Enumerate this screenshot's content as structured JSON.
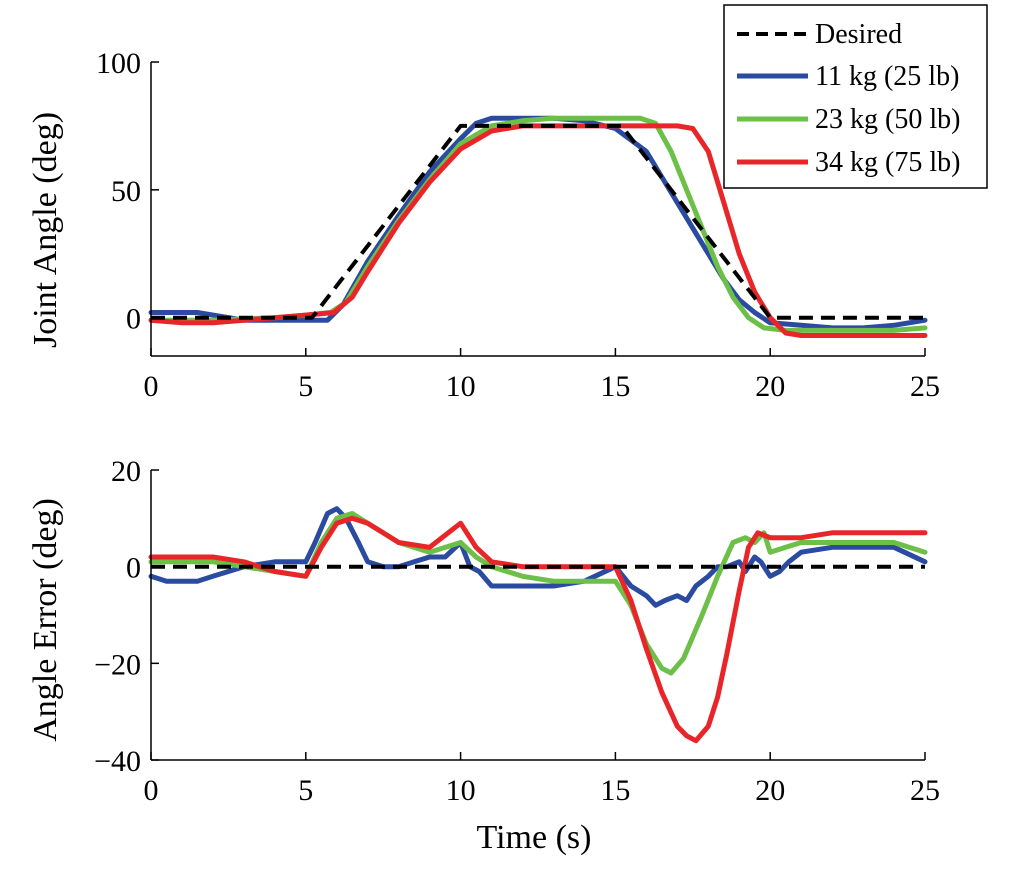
{
  "chart_data": [
    {
      "type": "line",
      "id": "top",
      "ylabel": "Joint Angle (deg)",
      "xlabel": "",
      "xlim": [
        0,
        25
      ],
      "ylim": [
        -15,
        100
      ],
      "xticks": [
        0,
        5,
        10,
        15,
        20,
        25
      ],
      "yticks": [
        0,
        50,
        100
      ],
      "legend": {
        "position": "top-right",
        "entries": [
          "Desired",
          "11 kg (25 lb)",
          "23 kg (50 lb)",
          "34 kg (75 lb)"
        ]
      },
      "series": [
        {
          "name": "Desired",
          "color": "#000000",
          "dashed": true,
          "x": [
            0,
            5.2,
            10,
            15.2,
            20,
            25
          ],
          "y": [
            0,
            0,
            75,
            75,
            0,
            0
          ]
        },
        {
          "name": "11 kg (25 lb)",
          "color": "#2b4ba1",
          "dashed": false,
          "x": [
            0,
            1.5,
            3,
            4,
            5,
            5.7,
            6.2,
            7,
            8,
            9,
            10,
            10.5,
            11,
            12,
            13,
            14,
            15,
            16,
            16.5,
            17,
            17.5,
            18,
            18.5,
            19,
            19.5,
            20,
            21,
            22,
            23,
            24,
            25
          ],
          "y": [
            2,
            2,
            -1,
            -1,
            -1,
            -1,
            5,
            22,
            40,
            57,
            70,
            76,
            78,
            78,
            78,
            77,
            74,
            65,
            55,
            45,
            35,
            25,
            15,
            7,
            2,
            -2,
            -3,
            -4,
            -4,
            -3,
            -1
          ]
        },
        {
          "name": "23 kg (50 lb)",
          "color": "#6cbf47",
          "dashed": false,
          "x": [
            0,
            2,
            4,
            5,
            5.8,
            6.3,
            7,
            8,
            9,
            10,
            11,
            12,
            13,
            14,
            15,
            15.8,
            16.3,
            16.8,
            17.3,
            17.8,
            18.3,
            18.8,
            19.3,
            19.8,
            20.5,
            22,
            23,
            24,
            25
          ],
          "y": [
            -1,
            -1,
            0,
            1,
            2,
            6,
            20,
            38,
            54,
            68,
            75,
            77,
            78,
            78,
            78,
            78,
            76,
            65,
            50,
            35,
            20,
            8,
            0,
            -4,
            -5,
            -5,
            -5,
            -5,
            -4
          ]
        },
        {
          "name": "34 kg (75 lb)",
          "color": "#e8262a",
          "dashed": false,
          "x": [
            0,
            1,
            2,
            3,
            4,
            5,
            5.9,
            6.5,
            7,
            8,
            9,
            10,
            11,
            12,
            13,
            14,
            15,
            16,
            17,
            17.5,
            18,
            18.5,
            19,
            19.5,
            20,
            20.5,
            21,
            22,
            23,
            24,
            25
          ],
          "y": [
            -1,
            -2,
            -2,
            -1,
            0,
            1,
            2,
            8,
            18,
            37,
            53,
            66,
            73,
            75,
            75,
            75,
            75,
            75,
            75,
            74,
            65,
            45,
            25,
            10,
            0,
            -6,
            -7,
            -7,
            -7,
            -7,
            -7
          ]
        }
      ]
    },
    {
      "type": "line",
      "id": "bottom",
      "ylabel": "Angle Error (deg)",
      "xlabel": "Time (s)",
      "xlim": [
        0,
        25
      ],
      "ylim": [
        -40,
        20
      ],
      "xticks": [
        0,
        5,
        10,
        15,
        20,
        25
      ],
      "yticks": [
        -40,
        -20,
        0,
        20
      ],
      "ytick_labels": [
        "−40",
        "−20",
        "0",
        "20"
      ],
      "series": [
        {
          "name": "Desired",
          "color": "#000000",
          "dashed": true,
          "x": [
            0,
            25
          ],
          "y": [
            0,
            0
          ]
        },
        {
          "name": "11 kg (25 lb)",
          "color": "#2b4ba1",
          "dashed": false,
          "x": [
            0,
            0.5,
            1,
            1.5,
            2,
            3,
            4,
            5,
            5.3,
            5.7,
            6,
            6.3,
            6.7,
            7,
            7.5,
            8,
            8.5,
            9,
            9.5,
            10,
            10.3,
            10.6,
            11,
            12,
            13,
            14,
            15,
            15.5,
            16,
            16.3,
            16.6,
            17,
            17.3,
            17.6,
            18,
            18.3,
            18.6,
            19,
            19.2,
            19.5,
            19.7,
            20,
            20.3,
            20.6,
            21,
            22,
            23,
            24,
            25
          ],
          "y": [
            -2,
            -3,
            -3,
            -3,
            -2,
            0,
            1,
            1,
            5,
            11,
            12,
            10,
            5,
            1,
            0,
            0,
            1,
            2,
            2,
            5,
            0,
            -1,
            -4,
            -4,
            -4,
            -3,
            0,
            -4,
            -6,
            -8,
            -7,
            -6,
            -7,
            -4,
            -2,
            0,
            0,
            1,
            -1,
            2,
            1,
            -2,
            -1,
            1,
            3,
            4,
            4,
            4,
            1
          ]
        },
        {
          "name": "23 kg (50 lb)",
          "color": "#6cbf47",
          "dashed": false,
          "x": [
            0,
            1,
            2,
            3,
            4,
            5,
            5.5,
            6,
            6.5,
            7,
            8,
            9,
            10,
            10.5,
            11,
            12,
            13,
            14,
            15,
            15.5,
            16,
            16.5,
            16.8,
            17.2,
            17.8,
            18.3,
            18.8,
            19.2,
            19.5,
            19.8,
            20,
            20.5,
            21,
            22,
            23,
            24,
            25
          ],
          "y": [
            1,
            1,
            1,
            0,
            -1,
            -2,
            5,
            10,
            11,
            9,
            5,
            3,
            5,
            2,
            0,
            -2,
            -3,
            -3,
            -3,
            -8,
            -16,
            -21,
            -22,
            -19,
            -10,
            -2,
            5,
            6,
            5,
            7,
            3,
            4,
            5,
            5,
            5,
            5,
            3
          ]
        },
        {
          "name": "34 kg (75 lb)",
          "color": "#e8262a",
          "dashed": false,
          "x": [
            0,
            1,
            2,
            3,
            4,
            5,
            5.5,
            6,
            6.5,
            7,
            8,
            9,
            10,
            10.5,
            11,
            12,
            13,
            14,
            15,
            15.5,
            16,
            16.5,
            17,
            17.3,
            17.6,
            18,
            18.3,
            18.6,
            19,
            19.3,
            19.6,
            20,
            21,
            22,
            23,
            24,
            25
          ],
          "y": [
            2,
            2,
            2,
            1,
            -1,
            -2,
            4,
            9,
            10,
            9,
            5,
            4,
            9,
            4,
            1,
            0,
            0,
            0,
            0,
            -7,
            -17,
            -26,
            -33,
            -35,
            -36,
            -33,
            -27,
            -18,
            -5,
            4,
            7,
            6,
            6,
            7,
            7,
            7,
            7
          ]
        }
      ]
    }
  ]
}
